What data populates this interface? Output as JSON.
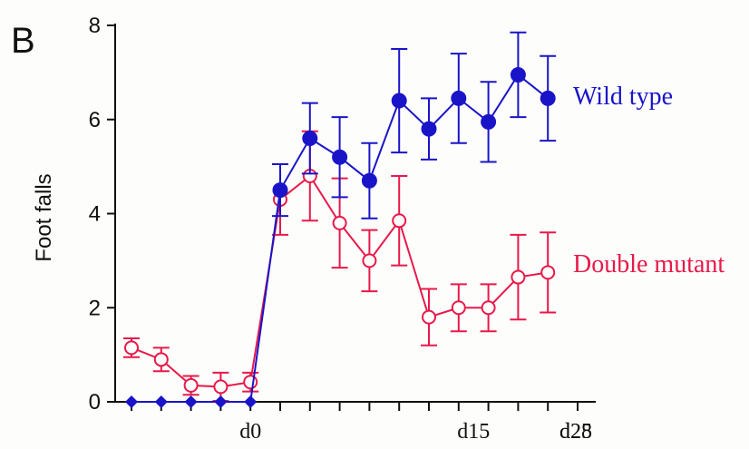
{
  "chart_data": {
    "type": "line",
    "panel_label": "B",
    "ylabel": "Foot falls",
    "ylim": [
      0,
      8
    ],
    "yticks": [
      "0",
      "2",
      "4",
      "6",
      "8"
    ],
    "xticks": [
      {
        "label": "d0",
        "x": 0
      },
      {
        "label": "d15",
        "x": 15
      },
      {
        "label": "d25",
        "x": 25
      },
      {
        "label": "d28",
        "x": 30
      }
    ],
    "xlim": [
      -9,
      30
    ],
    "series": [
      {
        "name": "Wild type",
        "color": "#1a14c8",
        "marker": "filled-circle",
        "points": [
          {
            "x": -8,
            "y": 0,
            "err": 0
          },
          {
            "x": -6,
            "y": 0,
            "err": 0
          },
          {
            "x": -4,
            "y": 0,
            "err": 0
          },
          {
            "x": -2,
            "y": 0,
            "err": 0
          },
          {
            "x": 0,
            "y": 0,
            "err": 0
          },
          {
            "x": 2,
            "y": 4.5,
            "err": 0.55
          },
          {
            "x": 4,
            "y": 5.6,
            "err": 0.75
          },
          {
            "x": 6,
            "y": 5.2,
            "err": 0.85
          },
          {
            "x": 8,
            "y": 4.7,
            "err": 0.8
          },
          {
            "x": 10,
            "y": 6.4,
            "err": 1.1
          },
          {
            "x": 12,
            "y": 5.8,
            "err": 0.65
          },
          {
            "x": 14,
            "y": 6.45,
            "err": 0.95
          },
          {
            "x": 16,
            "y": 5.95,
            "err": 0.85
          },
          {
            "x": 18,
            "y": 6.95,
            "err": 0.9
          },
          {
            "x": 20,
            "y": 6.45,
            "err": 0.9
          }
        ]
      },
      {
        "name": "Double mutant",
        "color": "#e8194a",
        "marker": "open-circle",
        "points": [
          {
            "x": -8,
            "y": 1.15,
            "err": 0.2
          },
          {
            "x": -6,
            "y": 0.9,
            "err": 0.25
          },
          {
            "x": -4,
            "y": 0.35,
            "err": 0.2
          },
          {
            "x": -2,
            "y": 0.32,
            "err": 0.3
          },
          {
            "x": 0,
            "y": 0.42,
            "err": 0.2
          },
          {
            "x": 2,
            "y": 4.3,
            "err": 0.75
          },
          {
            "x": 4,
            "y": 4.8,
            "err": 0.95
          },
          {
            "x": 6,
            "y": 3.8,
            "err": 0.95
          },
          {
            "x": 8,
            "y": 3.0,
            "err": 0.65
          },
          {
            "x": 10,
            "y": 3.85,
            "err": 0.95
          },
          {
            "x": 12,
            "y": 1.8,
            "err": 0.6
          },
          {
            "x": 14,
            "y": 2.0,
            "err": 0.5
          },
          {
            "x": 16,
            "y": 2.0,
            "err": 0.5
          },
          {
            "x": 18,
            "y": 2.65,
            "err": 0.9
          },
          {
            "x": 20,
            "y": 2.75,
            "err": 0.85
          }
        ]
      }
    ]
  }
}
